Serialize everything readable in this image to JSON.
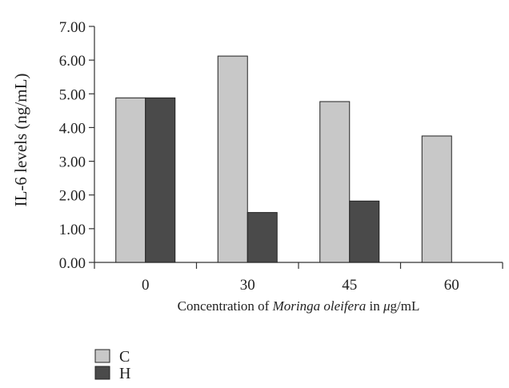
{
  "chart_data": {
    "type": "bar",
    "categories": [
      "0",
      "30",
      "45",
      "60"
    ],
    "series": [
      {
        "name": "C",
        "values": [
          4.88,
          6.12,
          4.77,
          3.75
        ],
        "color": "#c8c8c8"
      },
      {
        "name": "H",
        "values": [
          4.88,
          1.48,
          1.82,
          null
        ],
        "color": "#4a4a4a"
      }
    ],
    "yticks": [
      "0.00",
      "1.00",
      "2.00",
      "3.00",
      "4.00",
      "5.00",
      "6.00",
      "7.00"
    ],
    "ylim": [
      0,
      7
    ],
    "ylabel": "IL-6 levels (ng/mL)",
    "xlabel": {
      "prefix": "Concentration of ",
      "italic": "Moringa oleifera",
      "mid": " in ",
      "mu": "μ",
      "suffix": "g/mL"
    },
    "grid": false,
    "legend_position": "bottom-left"
  }
}
